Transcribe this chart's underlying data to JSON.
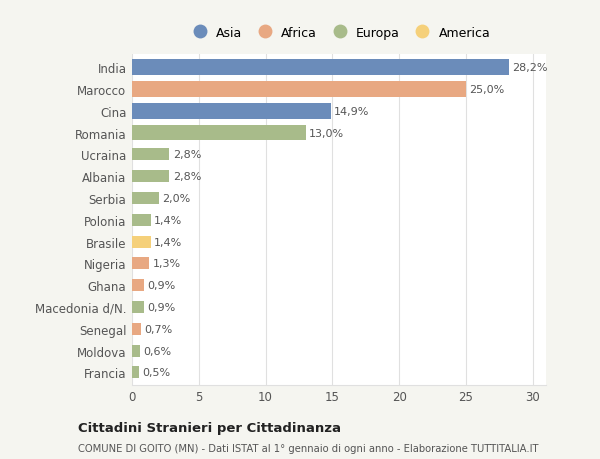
{
  "categories": [
    "India",
    "Marocco",
    "Cina",
    "Romania",
    "Ucraina",
    "Albania",
    "Serbia",
    "Polonia",
    "Brasile",
    "Nigeria",
    "Ghana",
    "Macedonia d/N.",
    "Senegal",
    "Moldova",
    "Francia"
  ],
  "values": [
    28.2,
    25.0,
    14.9,
    13.0,
    2.8,
    2.8,
    2.0,
    1.4,
    1.4,
    1.3,
    0.9,
    0.9,
    0.7,
    0.6,
    0.5
  ],
  "labels": [
    "28,2%",
    "25,0%",
    "14,9%",
    "13,0%",
    "2,8%",
    "2,8%",
    "2,0%",
    "1,4%",
    "1,4%",
    "1,3%",
    "0,9%",
    "0,9%",
    "0,7%",
    "0,6%",
    "0,5%"
  ],
  "continents": [
    "Asia",
    "Africa",
    "Asia",
    "Europa",
    "Europa",
    "Europa",
    "Europa",
    "Europa",
    "America",
    "Africa",
    "Africa",
    "Europa",
    "Africa",
    "Europa",
    "Europa"
  ],
  "continent_colors": {
    "Asia": "#6b8cba",
    "Africa": "#e8a882",
    "Europa": "#a8bb8a",
    "America": "#f5d07a"
  },
  "legend_order": [
    "Asia",
    "Africa",
    "Europa",
    "America"
  ],
  "title1": "Cittadini Stranieri per Cittadinanza",
  "title2": "COMUNE DI GOITO (MN) - Dati ISTAT al 1° gennaio di ogni anno - Elaborazione TUTTITALIA.IT",
  "xlim": [
    0,
    31
  ],
  "xticks": [
    0,
    5,
    10,
    15,
    20,
    25,
    30
  ],
  "background_color": "#f5f5f0",
  "bar_background": "#ffffff",
  "grid_color": "#e0e0e0",
  "text_color": "#555555",
  "label_color": "#555555"
}
